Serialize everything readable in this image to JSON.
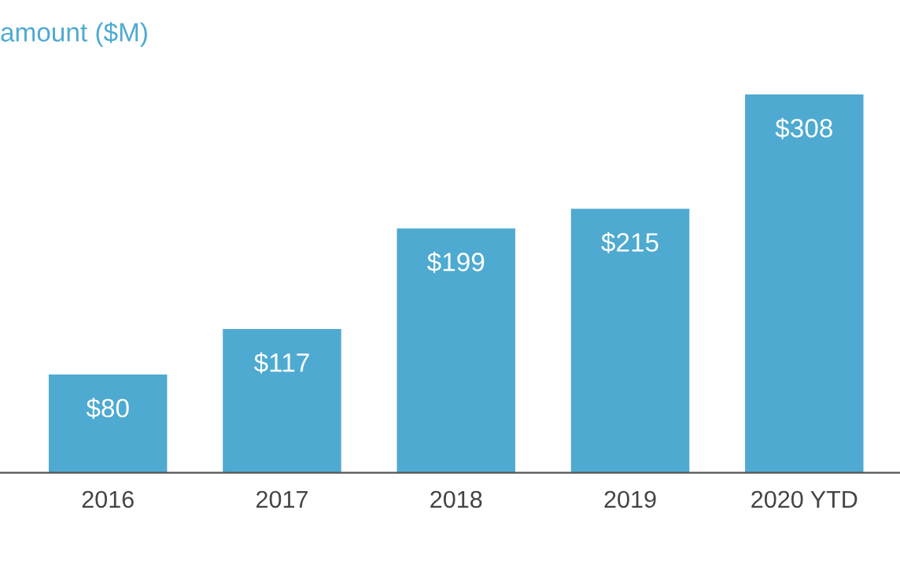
{
  "chart_data": {
    "type": "bar",
    "title": "amount ($M)",
    "categories": [
      "2016",
      "2017",
      "2018",
      "2019",
      "2020 YTD"
    ],
    "values": [
      80,
      117,
      199,
      215,
      308
    ],
    "value_labels": [
      "$80",
      "$117",
      "$199",
      "$215",
      "$308"
    ],
    "color": "#4eaad1",
    "tick_labels": "x",
    "grid": false,
    "legend": false
  }
}
